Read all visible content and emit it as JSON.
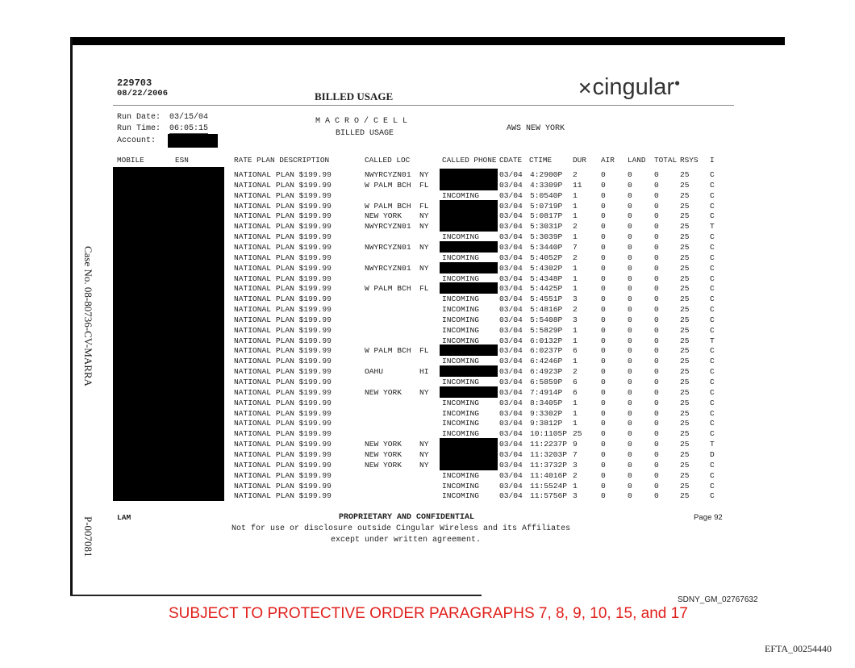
{
  "header": {
    "doc_id": "229703",
    "doc_date": "08/22/2006",
    "title": "BILLED USAGE",
    "logo_text": "cingular"
  },
  "run_info": {
    "run_date_label": "Run Date:",
    "run_date": "03/15/04",
    "run_time_label": "Run Time:",
    "run_time": "06:05:15",
    "account_label": "Account:"
  },
  "report": {
    "line1": "M A C R O / C E L L",
    "line2": "BILLED USAGE",
    "region": "AWS NEW YORK"
  },
  "columns": [
    "MOBILE",
    "ESN",
    "RATE PLAN DESCRIPTION",
    "CALLED LOC",
    "CALLED PHONE",
    "CDATE",
    "CTIME",
    "DUR",
    "AIR",
    "LAND",
    "TOTAL",
    "RSYS",
    "I"
  ],
  "rows": [
    [
      "NATIONAL PLAN $199.99",
      "NWYRCYZN01",
      "NY",
      "",
      "03/04",
      "4:2900P",
      "2",
      "0",
      "0",
      "0",
      "25",
      "C"
    ],
    [
      "NATIONAL PLAN $199.99",
      "W PALM BCH",
      "FL",
      "",
      "03/04",
      "4:3309P",
      "11",
      "0",
      "0",
      "0",
      "25",
      "C"
    ],
    [
      "NATIONAL PLAN $199.99",
      "",
      "",
      "INCOMING",
      "03/04",
      "5:0540P",
      "1",
      "0",
      "0",
      "0",
      "25",
      "C"
    ],
    [
      "NATIONAL PLAN $199.99",
      "W PALM BCH",
      "FL",
      "",
      "03/04",
      "5:0719P",
      "1",
      "0",
      "0",
      "0",
      "25",
      "C"
    ],
    [
      "NATIONAL PLAN $199.99",
      "NEW YORK",
      "NY",
      "",
      "03/04",
      "5:0817P",
      "1",
      "0",
      "0",
      "0",
      "25",
      "C"
    ],
    [
      "NATIONAL PLAN $199.99",
      "NWYRCYZN01",
      "NY",
      "",
      "03/04",
      "5:3031P",
      "2",
      "0",
      "0",
      "0",
      "25",
      "T"
    ],
    [
      "NATIONAL PLAN $199.99",
      "",
      "",
      "INCOMING",
      "03/04",
      "5:3039P",
      "1",
      "0",
      "0",
      "0",
      "25",
      "C"
    ],
    [
      "NATIONAL PLAN $199.99",
      "NWYRCYZN01",
      "NY",
      "",
      "03/04",
      "5:3440P",
      "7",
      "0",
      "0",
      "0",
      "25",
      "C"
    ],
    [
      "NATIONAL PLAN $199.99",
      "",
      "",
      "INCOMING",
      "03/04",
      "5:4052P",
      "2",
      "0",
      "0",
      "0",
      "25",
      "C"
    ],
    [
      "NATIONAL PLAN $199.99",
      "NWYRCYZN01",
      "NY",
      "",
      "03/04",
      "5:4302P",
      "1",
      "0",
      "0",
      "0",
      "25",
      "C"
    ],
    [
      "NATIONAL PLAN $199.99",
      "",
      "",
      "INCOMING",
      "03/04",
      "5:4348P",
      "1",
      "0",
      "0",
      "0",
      "25",
      "C"
    ],
    [
      "NATIONAL PLAN $199.99",
      "W PALM BCH",
      "FL",
      "",
      "03/04",
      "5:4425P",
      "1",
      "0",
      "0",
      "0",
      "25",
      "C"
    ],
    [
      "NATIONAL PLAN $199.99",
      "",
      "",
      "INCOMING",
      "03/04",
      "5:4551P",
      "3",
      "0",
      "0",
      "0",
      "25",
      "C"
    ],
    [
      "NATIONAL PLAN $199.99",
      "",
      "",
      "INCOMING",
      "03/04",
      "5:4816P",
      "2",
      "0",
      "0",
      "0",
      "25",
      "C"
    ],
    [
      "NATIONAL PLAN $199.99",
      "",
      "",
      "INCOMING",
      "03/04",
      "5:5408P",
      "3",
      "0",
      "0",
      "0",
      "25",
      "C"
    ],
    [
      "NATIONAL PLAN $199.99",
      "",
      "",
      "INCOMING",
      "03/04",
      "5:5829P",
      "1",
      "0",
      "0",
      "0",
      "25",
      "C"
    ],
    [
      "NATIONAL PLAN $199.99",
      "",
      "",
      "INCOMING",
      "03/04",
      "6:0132P",
      "1",
      "0",
      "0",
      "0",
      "25",
      "T"
    ],
    [
      "NATIONAL PLAN $199.99",
      "W PALM BCH",
      "FL",
      "",
      "03/04",
      "6:0237P",
      "6",
      "0",
      "0",
      "0",
      "25",
      "C"
    ],
    [
      "NATIONAL PLAN $199.99",
      "",
      "",
      "INCOMING",
      "03/04",
      "6:4246P",
      "1",
      "0",
      "0",
      "0",
      "25",
      "C"
    ],
    [
      "NATIONAL PLAN $199.99",
      "OAHU",
      "HI",
      "",
      "03/04",
      "6:4923P",
      "2",
      "0",
      "0",
      "0",
      "25",
      "C"
    ],
    [
      "NATIONAL PLAN $199.99",
      "",
      "",
      "INCOMING",
      "03/04",
      "6:5859P",
      "6",
      "0",
      "0",
      "0",
      "25",
      "C"
    ],
    [
      "NATIONAL PLAN $199.99",
      "NEW YORK",
      "NY",
      "",
      "03/04",
      "7:4914P",
      "6",
      "0",
      "0",
      "0",
      "25",
      "C"
    ],
    [
      "NATIONAL PLAN $199.99",
      "",
      "",
      "INCOMING",
      "03/04",
      "8:3405P",
      "1",
      "0",
      "0",
      "0",
      "25",
      "C"
    ],
    [
      "NATIONAL PLAN $199.99",
      "",
      "",
      "INCOMING",
      "03/04",
      "9:3302P",
      "1",
      "0",
      "0",
      "0",
      "25",
      "C"
    ],
    [
      "NATIONAL PLAN $199.99",
      "",
      "",
      "INCOMING",
      "03/04",
      "9:3812P",
      "1",
      "0",
      "0",
      "0",
      "25",
      "C"
    ],
    [
      "NATIONAL PLAN $199.99",
      "",
      "",
      "INCOMING",
      "03/04",
      "10:1105P",
      "25",
      "0",
      "0",
      "0",
      "25",
      "C"
    ],
    [
      "NATIONAL PLAN $199.99",
      "NEW YORK",
      "NY",
      "",
      "03/04",
      "11:2237P",
      "9",
      "0",
      "0",
      "0",
      "25",
      "T"
    ],
    [
      "NATIONAL PLAN $199.99",
      "NEW YORK",
      "NY",
      "",
      "03/04",
      "11:3203P",
      "7",
      "0",
      "0",
      "0",
      "25",
      "D"
    ],
    [
      "NATIONAL PLAN $199.99",
      "NEW YORK",
      "NY",
      "",
      "03/04",
      "11:3732P",
      "3",
      "0",
      "0",
      "0",
      "25",
      "C"
    ],
    [
      "NATIONAL PLAN $199.99",
      "",
      "",
      "INCOMING",
      "03/04",
      "11:4016P",
      "2",
      "0",
      "0",
      "0",
      "25",
      "C"
    ],
    [
      "NATIONAL PLAN $199.99",
      "",
      "",
      "INCOMING",
      "03/04",
      "11:5524P",
      "1",
      "0",
      "0",
      "0",
      "25",
      "C"
    ],
    [
      "NATIONAL PLAN $199.99",
      "",
      "",
      "INCOMING",
      "03/04",
      "11:5756P",
      "3",
      "0",
      "0",
      "0",
      "25",
      "C"
    ]
  ],
  "footer": {
    "left": "LAM",
    "center": "PROPRIETARY AND CONFIDENTIAL",
    "page": "Page 92",
    "notice1": "Not for use or disclosure outside Cingular Wireless and its Affiliates",
    "notice2": "except under written agreement."
  },
  "margin": {
    "case_no": "Case No. 08-80736-CV-MARRA",
    "exhibit": "P-007081"
  },
  "bates": "SDNY_GM_02767632",
  "protective_order": "SUBJECT TO PROTECTIVE ORDER PARAGRAPHS 7, 8, 9, 10, 15, and 17",
  "efta": "EFTA_00254440",
  "colors": {
    "protective_order": "#e0201c",
    "redaction": "#000000"
  }
}
